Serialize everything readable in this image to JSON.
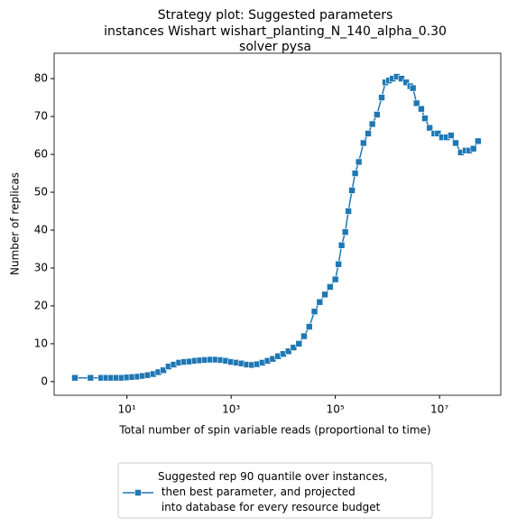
{
  "chart_data": {
    "type": "line",
    "title": [
      "Strategy plot: Suggested parameters",
      "instances Wishart wishart_planting_N_140_alpha_0.30",
      "solver pysa"
    ],
    "xlabel": "Total number of spin variable reads (proportional to time)",
    "ylabel": "Number of replicas",
    "xscale": "log",
    "xlim": [
      0.4,
      150000000
    ],
    "ylim": [
      -3.6,
      86.7
    ],
    "xticks": [
      {
        "value": 10,
        "label": "10¹"
      },
      {
        "value": 1000,
        "label": "10³"
      },
      {
        "value": 100000,
        "label": "10⁵"
      },
      {
        "value": 10000000,
        "label": "10⁷"
      }
    ],
    "yticks": [
      0,
      10,
      20,
      30,
      40,
      50,
      60,
      70,
      80
    ],
    "grid": false,
    "legend": "below",
    "x": [
      1,
      2,
      3.2,
      4,
      5,
      6.3,
      8,
      10,
      12.6,
      16,
      20,
      25,
      32,
      40,
      50,
      63,
      79,
      100,
      126,
      158,
      200,
      251,
      316,
      398,
      501,
      631,
      794,
      1000,
      1260,
      1580,
      2000,
      2510,
      3160,
      3980,
      5010,
      6310,
      7940,
      10000,
      12600,
      15800,
      20000,
      25100,
      31600,
      39800,
      50100,
      63100,
      79400,
      100000,
      115000,
      132000,
      155000,
      178000,
      209000,
      240000,
      282000,
      347000,
      427000,
      513000,
      631000,
      776000,
      912000,
      1070000,
      1260000,
      1510000,
      1860000,
      2290000,
      2750000,
      3090000,
      3630000,
      4470000,
      5250000,
      6460000,
      7940000,
      9330000,
      11200000,
      13800000,
      16600000,
      20400000,
      25700000,
      31600000,
      37200000,
      44700000,
      55000000
    ],
    "series": [
      {
        "name": "Suggested rep 90 quantile over instances,\n then best parameter, and projected\n into database for every resource budget",
        "color": "#1f77b4",
        "values": [
          1,
          1,
          1,
          1,
          1,
          1,
          1,
          1.1,
          1.2,
          1.3,
          1.5,
          1.7,
          2,
          2.5,
          3,
          4,
          4.5,
          5,
          5.2,
          5.3,
          5.5,
          5.6,
          5.7,
          5.8,
          5.8,
          5.7,
          5.5,
          5.2,
          5,
          4.8,
          4.5,
          4.4,
          4.6,
          5,
          5.5,
          6,
          6.7,
          7.3,
          8,
          9,
          10,
          12,
          14.5,
          18.5,
          21,
          23,
          25,
          27,
          31,
          36,
          39.5,
          45,
          50.5,
          55,
          58,
          63,
          65.5,
          68,
          70.5,
          75,
          79,
          79.5,
          80,
          80.5,
          80,
          79,
          78,
          77.5,
          73.5,
          72,
          69.5,
          67,
          65.5,
          65.5,
          64.5,
          64.5,
          65,
          63,
          60.5,
          61,
          61,
          61.5,
          63.5
        ]
      }
    ]
  }
}
